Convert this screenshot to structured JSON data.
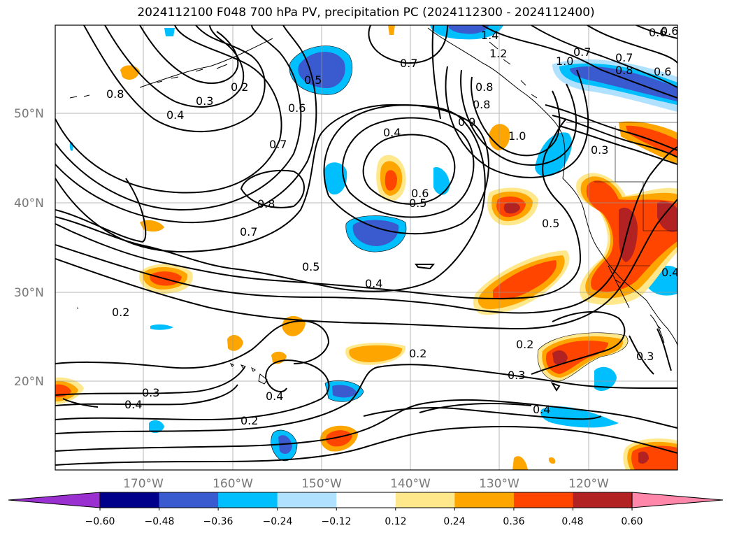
{
  "title": "2024112100 F048 700 hPa PV, precipitation PC (2024112300 - 2024112400)",
  "lat_labels": [
    "50°N",
    "40°N",
    "30°N",
    "20°N"
  ],
  "lon_labels": [
    "170°W",
    "160°W",
    "150°W",
    "140°W",
    "130°W",
    "120°W"
  ],
  "contour_labels": [
    "1.4",
    "1.2",
    "0.7",
    "1.0",
    "0.8",
    "0.6",
    "0.7",
    "0.8",
    "0.3",
    "0.2",
    "0.5",
    "0.6",
    "0.4",
    "0.8",
    "0.7",
    "0.4",
    "0.9",
    "0.6",
    "0.5",
    "1.0",
    "0.3",
    "0.8",
    "0.7",
    "0.5",
    "0.5",
    "0.4",
    "0.2",
    "0.4",
    "0.2",
    "0.3",
    "0.2",
    "0.3",
    "0.4",
    "0.4",
    "0.2",
    "0.4",
    "0.3",
    "0.6",
    "0.8",
    "0.6",
    "0.7"
  ],
  "colorbar": {
    "ticks": [
      "−0.60",
      "−0.48",
      "−0.36",
      "−0.24",
      "−0.12",
      "0.12",
      "0.24",
      "0.36",
      "0.48",
      "0.60"
    ],
    "colors": [
      "#9b30d0",
      "#00008b",
      "#3a5bd0",
      "#00bfff",
      "#b0e2ff",
      "#ffffff",
      "#ffe88c",
      "#ffa500",
      "#ff4500",
      "#b22222",
      "#ff88aa"
    ]
  }
}
